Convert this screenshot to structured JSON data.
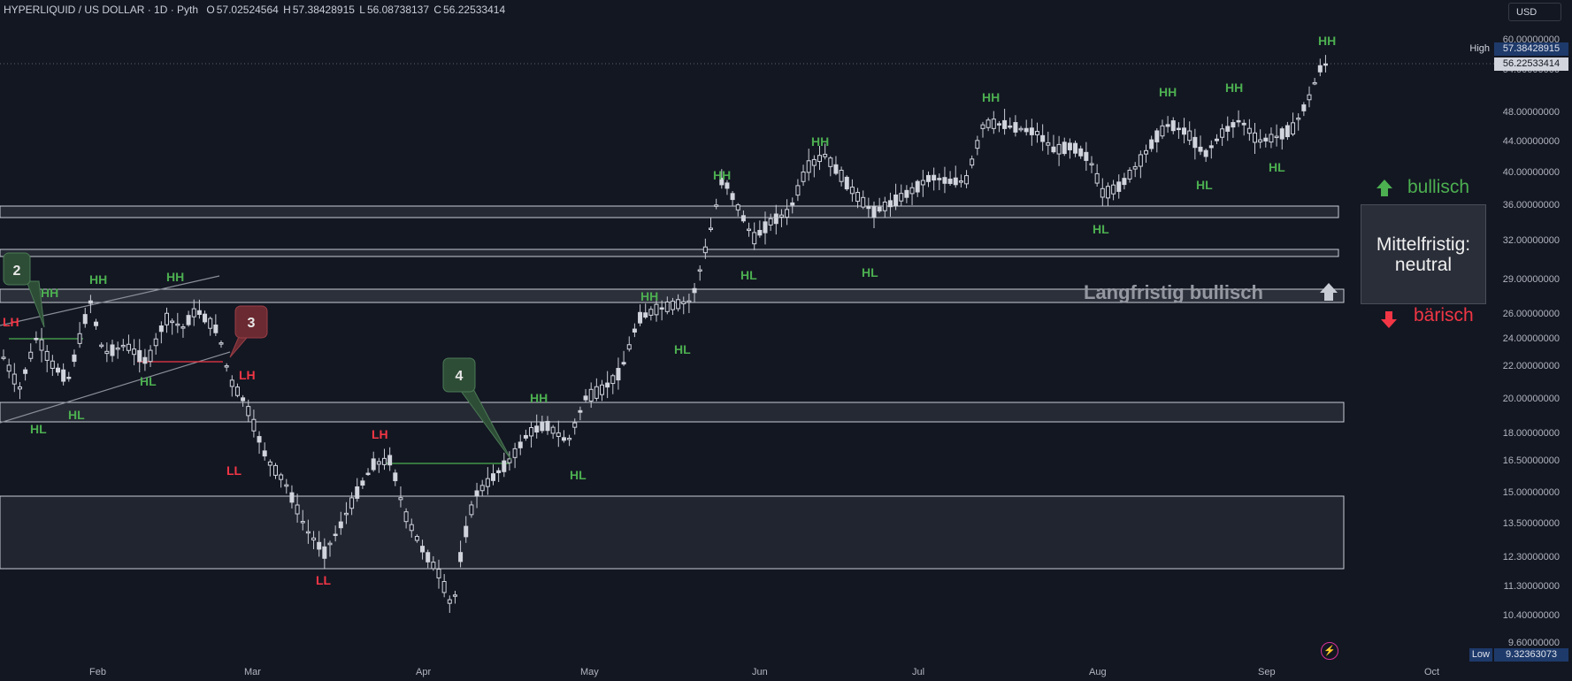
{
  "header": {
    "symbol": "HYPERLIQUID / US DOLLAR · 1D · Pyth",
    "open_label": "O",
    "open": "57.02524564",
    "high_label": "H",
    "high": "57.38428915",
    "low_label": "L",
    "low": "56.08738137",
    "close_label": "C",
    "close": "56.22533414"
  },
  "currency_button": "USD",
  "price_axis": {
    "ticks": [
      "60.00000000",
      "57.38428915",
      "56.22533414",
      "54.00000000",
      "48.00000000",
      "44.00000000",
      "40.00000000",
      "36.00000000",
      "32.00000000",
      "29.00000000",
      "26.00000000",
      "24.00000000",
      "22.00000000",
      "20.00000000",
      "18.00000000",
      "16.50000000",
      "15.00000000",
      "13.50000000",
      "12.30000000",
      "11.30000000",
      "10.40000000",
      "9.60000000",
      "9.32363073"
    ],
    "high_label": "High",
    "high_value": "57.38428915",
    "current_value": "56.22533414",
    "low_label": "Low",
    "low_value": "9.32363073"
  },
  "time_axis": {
    "months": [
      "Feb",
      "Mar",
      "Apr",
      "May",
      "Jun",
      "Jul",
      "Aug",
      "Sep",
      "Oct"
    ]
  },
  "swing_labels": {
    "hh": "HH",
    "hl": "HL",
    "lh": "LH",
    "ll": "LL"
  },
  "callouts": {
    "c2": "2",
    "c3": "3",
    "c4": "4"
  },
  "annotations": {
    "long_term": "Langfristig bullisch",
    "bullish": "bullisch",
    "bearish": "bärisch",
    "mid_term_line1": "Mittelfristig:",
    "mid_term_line2": "neutral"
  },
  "colors": {
    "background": "#131722",
    "candle": "#d1d4dc",
    "bull_label": "#4caf50",
    "bear_label": "#f23645",
    "callout_green": "#2e4d36",
    "callout_red": "#6b2a31"
  }
}
